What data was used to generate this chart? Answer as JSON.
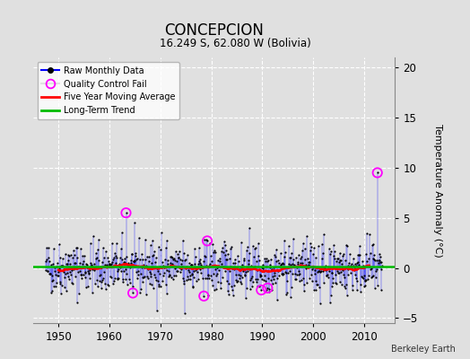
{
  "title": "CONCEPCION",
  "subtitle": "16.249 S, 62.080 W (Bolivia)",
  "ylabel": "Temperature Anomaly (°C)",
  "credit": "Berkeley Earth",
  "xlim": [
    1945,
    2016
  ],
  "ylim": [
    -5.5,
    21
  ],
  "yticks": [
    -5,
    0,
    5,
    10,
    15,
    20
  ],
  "xticks": [
    1950,
    1960,
    1970,
    1980,
    1990,
    2000,
    2010
  ],
  "background_color": "#e0e0e0",
  "plot_bg_color": "#e0e0e0",
  "raw_line_color": "#0000ff",
  "raw_dot_color": "#000000",
  "qc_fail_color": "#ff00ff",
  "moving_avg_color": "#ff0000",
  "trend_color": "#00bb00",
  "seed": 42,
  "n_points": 792,
  "start_year": 1947.5,
  "end_year": 2013.5,
  "long_term_trend_value": 0.1,
  "noise_scale": 1.3,
  "outliers": [
    {
      "year": 1963.3,
      "value": 5.5,
      "qc": true
    },
    {
      "year": 1964.6,
      "value": -2.5,
      "qc": true
    },
    {
      "year": 1970.2,
      "value": 3.5,
      "qc": false
    },
    {
      "year": 1974.8,
      "value": -4.5,
      "qc": false
    },
    {
      "year": 1978.5,
      "value": -2.8,
      "qc": true
    },
    {
      "year": 1979.2,
      "value": 2.7,
      "qc": true
    },
    {
      "year": 1989.8,
      "value": -2.2,
      "qc": true
    },
    {
      "year": 1991.0,
      "value": -2.0,
      "qc": true
    },
    {
      "year": 2012.5,
      "value": 9.5,
      "qc": true
    }
  ]
}
